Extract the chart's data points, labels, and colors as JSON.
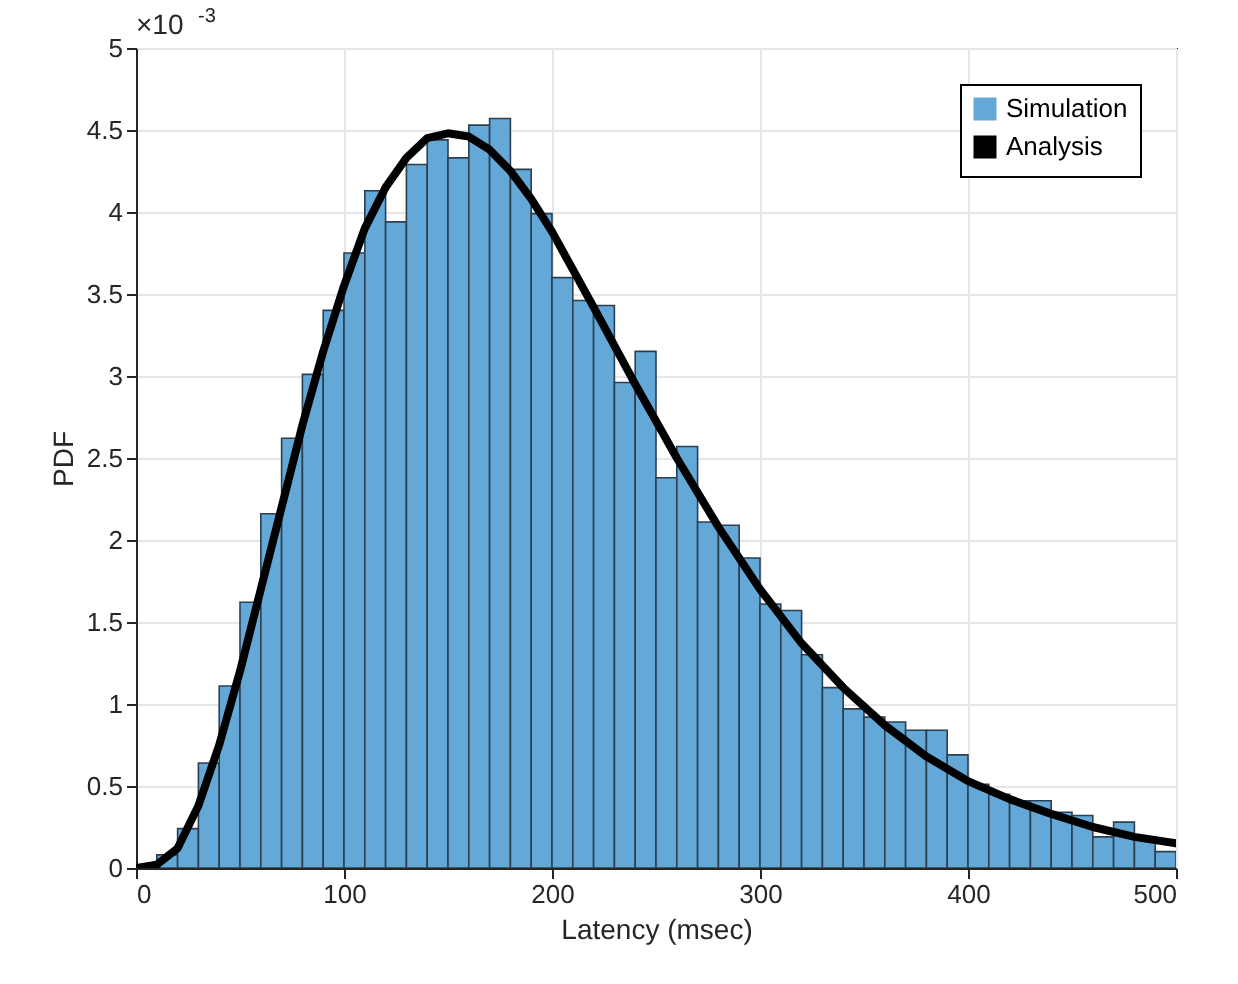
{
  "chart_data": {
    "type": "histogram",
    "xlabel": "Latency (msec)",
    "ylabel": "PDF",
    "annotations": [
      "×10$^{-3}$"
    ],
    "bins": [
      0,
      10,
      20,
      30,
      40,
      50,
      60,
      70,
      80,
      90,
      100,
      110,
      120,
      130,
      140,
      150,
      160,
      170,
      180,
      190,
      200,
      210,
      220,
      230,
      240,
      250,
      260,
      270,
      280,
      290,
      300,
      310,
      320,
      330,
      340,
      350,
      360,
      370,
      380,
      390,
      400,
      410,
      420,
      430,
      440,
      450,
      460,
      470,
      480,
      490,
      500
    ],
    "series": [
      {
        "name": "Simulation",
        "color": "#64a8d8",
        "values": [
          0.01,
          0.08,
          0.24,
          0.64,
          1.11,
          1.62,
          2.16,
          2.62,
          3.01,
          3.4,
          3.75,
          4.13,
          3.94,
          4.29,
          4.44,
          4.33,
          4.53,
          4.57,
          4.26,
          3.99,
          3.6,
          3.46,
          3.43,
          2.96,
          3.15,
          2.38,
          2.57,
          2.11,
          2.09,
          1.89,
          1.61,
          1.57,
          1.3,
          1.1,
          0.97,
          0.92,
          0.89,
          0.84,
          0.84,
          0.69,
          0.51,
          0.45,
          0.41,
          0.41,
          0.34,
          0.32,
          0.19,
          0.28,
          0.19,
          0.1
        ]
      },
      {
        "name": "Analysis",
        "type": "line",
        "color": "#000000",
        "x": [
          0,
          10,
          20,
          30,
          40,
          50,
          60,
          70,
          80,
          90,
          100,
          110,
          120,
          130,
          140,
          150,
          160,
          170,
          180,
          190,
          200,
          220,
          240,
          260,
          280,
          300,
          320,
          340,
          360,
          380,
          400,
          420,
          440,
          460,
          480,
          500
        ],
        "values": [
          0,
          0.02,
          0.12,
          0.38,
          0.75,
          1.2,
          1.7,
          2.2,
          2.7,
          3.15,
          3.55,
          3.9,
          4.15,
          4.33,
          4.45,
          4.48,
          4.46,
          4.38,
          4.25,
          4.08,
          3.88,
          3.42,
          2.95,
          2.5,
          2.08,
          1.7,
          1.37,
          1.1,
          0.87,
          0.68,
          0.53,
          0.42,
          0.33,
          0.25,
          0.19,
          0.15
        ]
      }
    ],
    "xlim": [
      0,
      500
    ],
    "xticks": [
      0,
      100,
      200,
      300,
      400,
      500
    ],
    "ylim": [
      0,
      5
    ],
    "yticks": [
      0,
      0.5,
      1,
      1.5,
      2,
      2.5,
      3,
      3.5,
      4,
      4.5,
      5
    ],
    "grid": true,
    "legend": "top right",
    "marker": "none",
    "line_style": "solid"
  }
}
